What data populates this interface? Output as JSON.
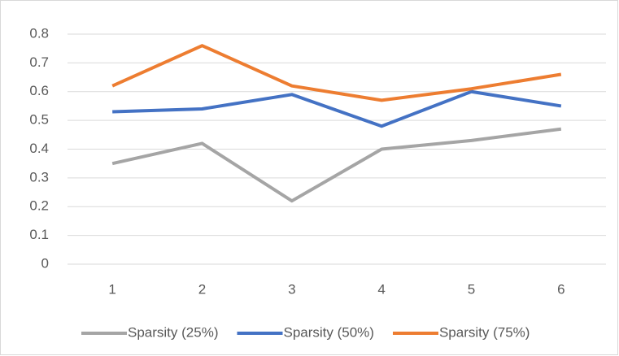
{
  "chart_data": {
    "type": "line",
    "categories": [
      "1",
      "2",
      "3",
      "4",
      "5",
      "6"
    ],
    "series": [
      {
        "name": "Sparsity (25%)",
        "color": "#a5a5a5",
        "values": [
          0.35,
          0.42,
          0.22,
          0.4,
          0.43,
          0.47
        ]
      },
      {
        "name": "Sparsity (50%)",
        "color": "#4472c4",
        "values": [
          0.53,
          0.54,
          0.59,
          0.48,
          0.6,
          0.55
        ]
      },
      {
        "name": "Sparsity (75%)",
        "color": "#ed7d31",
        "values": [
          0.62,
          0.76,
          0.62,
          0.57,
          0.61,
          0.66
        ]
      }
    ],
    "ylim": [
      0,
      0.8
    ],
    "yticks": [
      0,
      0.1,
      0.2,
      0.3,
      0.4,
      0.5,
      0.6,
      0.7,
      0.8
    ],
    "grid": true,
    "legend": "bottom"
  }
}
